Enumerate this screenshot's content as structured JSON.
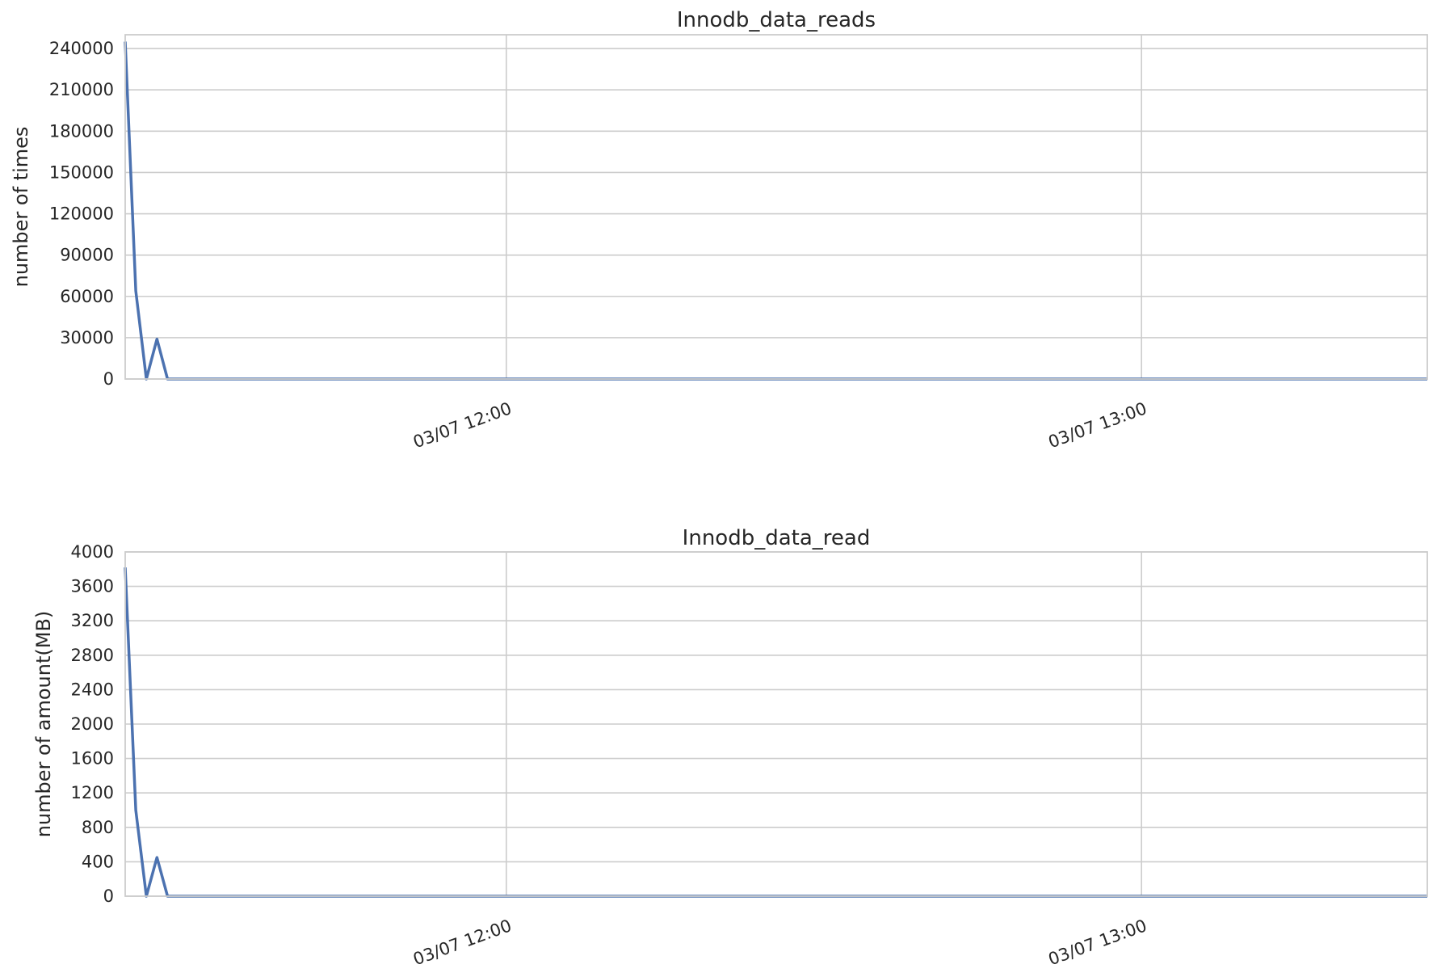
{
  "chart_data": [
    {
      "type": "line",
      "title": "Innodb_data_reads",
      "ylabel": "number of times",
      "xlabel": "",
      "x_ticks": [
        "03/07 12:00",
        "03/07 13:00"
      ],
      "y_ticks": [
        0,
        30000,
        60000,
        90000,
        120000,
        150000,
        180000,
        210000,
        240000
      ],
      "xlim": [
        "03/07 11:24",
        "03/07 13:27"
      ],
      "ylim": [
        0,
        250000
      ],
      "grid": true,
      "legend": "none",
      "color": "#4c72b0",
      "series": [
        {
          "x": [
            "03/07 11:24",
            "03/07 11:25",
            "03/07 11:26",
            "03/07 11:27",
            "03/07 11:28",
            "03/07 11:30",
            "03/07 12:00",
            "03/07 13:00",
            "03/07 13:27"
          ],
          "values": [
            245000,
            64000,
            0,
            29000,
            0,
            0,
            0,
            0,
            0
          ]
        }
      ]
    },
    {
      "type": "line",
      "title": "Innodb_data_read",
      "ylabel": "number of amount(MB)",
      "xlabel": "",
      "x_ticks": [
        "03/07 12:00",
        "03/07 13:00"
      ],
      "y_ticks": [
        0,
        400,
        800,
        1200,
        1600,
        2000,
        2400,
        2800,
        3200,
        3600,
        4000
      ],
      "xlim": [
        "03/07 11:24",
        "03/07 13:27"
      ],
      "ylim": [
        0,
        4000
      ],
      "grid": true,
      "legend": "none",
      "color": "#4c72b0",
      "series": [
        {
          "x": [
            "03/07 11:24",
            "03/07 11:25",
            "03/07 11:26",
            "03/07 11:27",
            "03/07 11:28",
            "03/07 11:30",
            "03/07 12:00",
            "03/07 13:00",
            "03/07 13:27"
          ],
          "values": [
            3820,
            1000,
            0,
            450,
            0,
            0,
            0,
            0,
            0
          ]
        }
      ]
    }
  ]
}
